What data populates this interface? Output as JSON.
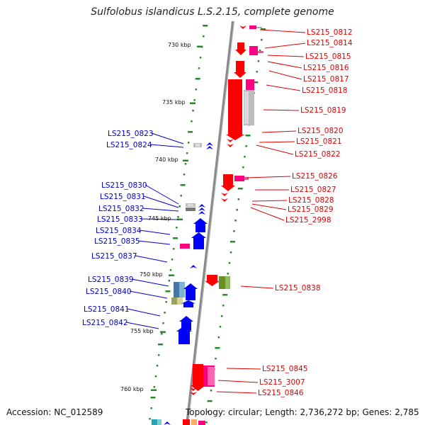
{
  "title": "Sulfolobus islandicus L.S.2.15, complete genome",
  "accession": "Accession: NC_012589",
  "summary": "Topology: circular; Length: 2,736,272 bp; Genes: 2,785",
  "colors": {
    "forward_label": "#e00000",
    "reverse_label": "#0000cc",
    "backbone": "#888888",
    "tick": "#2a8a2a"
  },
  "kbp_ticks": [
    "730 kbp",
    "735 kbp",
    "740 kbp",
    "745 kbp",
    "750 kbp",
    "755 kbp",
    "760 kbp"
  ],
  "forward_genes": [
    "LS215_0812",
    "LS215_0814",
    "LS215_0815",
    "LS215_0816",
    "LS215_0817",
    "LS215_0818",
    "LS215_0819",
    "LS215_0820",
    "LS215_0821",
    "LS215_0822",
    "LS215_0826",
    "LS215_0827",
    "LS215_0828",
    "LS215_0829",
    "LS215_2998",
    "LS215_0838",
    "LS215_0845",
    "LS215_3007",
    "LS215_0846"
  ],
  "reverse_genes": [
    "LS215_0823",
    "LS215_0824",
    "LS215_0830",
    "LS215_0831",
    "LS215_0832",
    "LS215_0833",
    "LS215_0834",
    "LS215_0835",
    "LS215_0837",
    "LS215_0839",
    "LS215_0840",
    "LS215_0841",
    "LS215_0842"
  ]
}
